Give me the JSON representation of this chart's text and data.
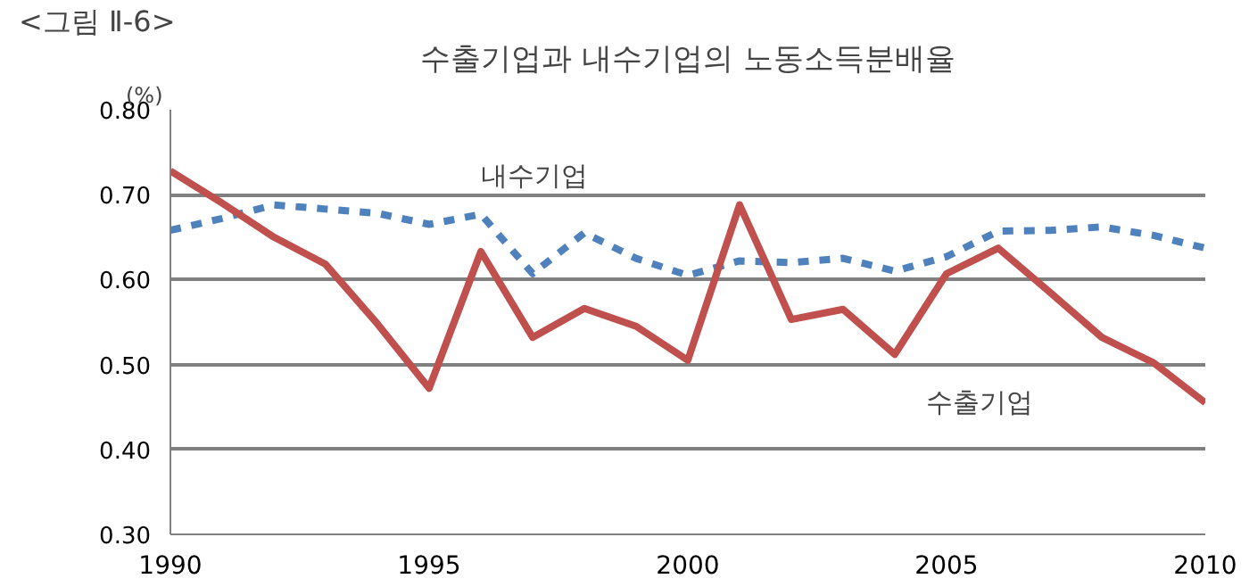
{
  "chart_data": {
    "type": "line",
    "title": "수출기업과 내수기업의 노동소득분배율",
    "ylabel": "(%)",
    "annotations": [
      "<그림 Ⅱ-6>"
    ],
    "x": [
      1990,
      1991,
      1992,
      1993,
      1994,
      1995,
      1996,
      1997,
      1998,
      1999,
      2000,
      2001,
      2002,
      2003,
      2004,
      2005,
      2006,
      2007,
      2008,
      2009,
      2010
    ],
    "series": [
      {
        "name": "내수기업",
        "color": "#4f81bd",
        "line_style": "dashed",
        "values": [
          0.658,
          0.672,
          0.688,
          0.683,
          0.678,
          0.665,
          0.677,
          0.607,
          0.655,
          0.625,
          0.605,
          0.622,
          0.62,
          0.625,
          0.61,
          0.627,
          0.657,
          0.658,
          0.662,
          0.652,
          0.637
        ]
      },
      {
        "name": "수출기업",
        "color": "#c0504d",
        "line_style": "solid",
        "values": [
          0.728,
          0.69,
          0.65,
          0.618,
          0.548,
          0.472,
          0.633,
          0.532,
          0.566,
          0.545,
          0.505,
          0.688,
          0.553,
          0.565,
          0.512,
          0.607,
          0.637,
          0.585,
          0.532,
          0.502,
          0.455
        ]
      }
    ],
    "xlim": [
      1990,
      2010
    ],
    "xticks": [
      1990,
      1995,
      2000,
      2005,
      2010
    ],
    "ylim": [
      0.3,
      0.8
    ],
    "yticks": [
      {
        "value": 0.3,
        "label": "0.30"
      },
      {
        "value": 0.4,
        "label": "0.40"
      },
      {
        "value": 0.5,
        "label": "0.50"
      },
      {
        "value": 0.6,
        "label": "0.60"
      },
      {
        "value": 0.7,
        "label": "0.70"
      },
      {
        "value": 0.8,
        "label": "0.80"
      }
    ],
    "grid": "y",
    "legend": false,
    "marker": "none"
  }
}
